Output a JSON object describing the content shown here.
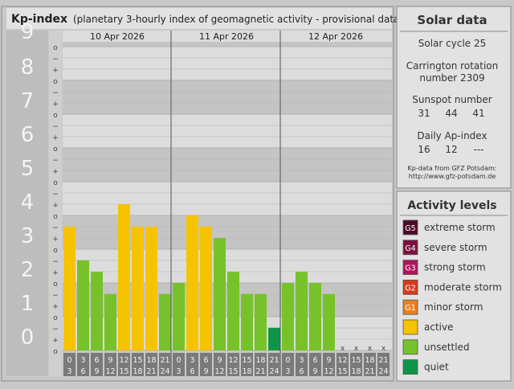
{
  "header": {
    "title": "Kp-index",
    "subtitle": "(planetary 3-hourly index of geomagnetic activity - provisional data)"
  },
  "chart_data": {
    "type": "bar",
    "y_levels": [
      "0",
      "1",
      "2",
      "3",
      "4",
      "5",
      "6",
      "7",
      "8",
      "9"
    ],
    "ylim": [
      0,
      9
    ],
    "minor_ticks": [
      "o",
      "+",
      "−"
    ],
    "days": [
      {
        "label": "10 Apr 2026",
        "values": [
          3.67,
          2.67,
          2.33,
          1.67,
          4.33,
          3.67,
          3.67,
          1.67
        ]
      },
      {
        "label": "11 Apr 2026",
        "values": [
          2.0,
          4.0,
          3.67,
          3.33,
          2.33,
          1.67,
          1.67,
          0.67
        ]
      },
      {
        "label": "12 Apr 2026",
        "values": [
          2.0,
          2.33,
          2.0,
          1.67,
          null,
          null,
          null,
          null
        ]
      }
    ],
    "hour_start": [
      "0",
      "3",
      "6",
      "9",
      "12",
      "15",
      "18",
      "21"
    ],
    "hour_end": [
      "3",
      "6",
      "9",
      "12",
      "15",
      "18",
      "21",
      "24"
    ],
    "missing_marker": "x",
    "thresholds": {
      "active": 3.67,
      "unsettled": 1.67
    }
  },
  "solar": {
    "title": "Solar data",
    "cycle": "Solar cycle 25",
    "carrington_line1": "Carrington rotation",
    "carrington_line2": "number 2309",
    "sunspot_label": "Sunspot number",
    "sunspot_values": [
      "31",
      "44",
      "41"
    ],
    "ap_label": "Daily Ap-index",
    "ap_values": [
      "16",
      "12",
      "---"
    ],
    "source_line1": "Kp-data from GFZ Potsdam:",
    "source_line2": "http://www.gfz-potsdam.de"
  },
  "activity": {
    "title": "Activity levels",
    "levels": [
      {
        "code": "G5",
        "label": "extreme storm",
        "color": "#4d0a2a"
      },
      {
        "code": "G4",
        "label": "severe storm",
        "color": "#7a0f3e"
      },
      {
        "code": "G3",
        "label": "strong storm",
        "color": "#b0145a"
      },
      {
        "code": "G2",
        "label": "moderate storm",
        "color": "#d63a1c"
      },
      {
        "code": "G1",
        "label": "minor storm",
        "color": "#e8801f"
      },
      {
        "code": "",
        "label": "active",
        "color": "#f6c300"
      },
      {
        "code": "",
        "label": "unsettled",
        "color": "#77c22a"
      },
      {
        "code": "",
        "label": "quiet",
        "color": "#0f9448"
      }
    ]
  }
}
